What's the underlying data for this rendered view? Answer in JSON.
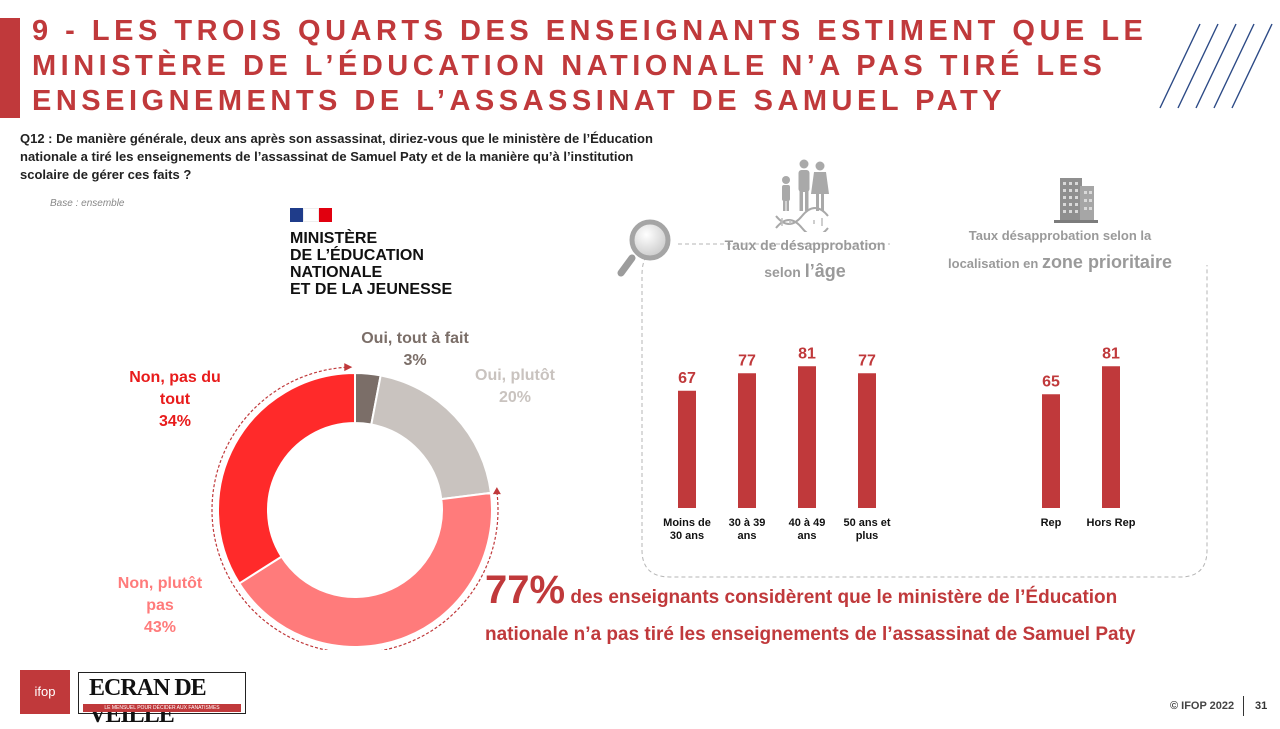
{
  "title": "9 - Les trois quarts des enseignants estiment que le ministère de l’Éducation nationale n’a pas tiré les enseignements de l’assassinat de Samuel Paty",
  "question": "Q12 : De manière générale, deux ans après son assassinat, diriez-vous que le ministère de l’Éducation nationale a tiré les enseignements de l’assassinat de Samuel Paty et de la manière qu’à l’institution scolaire de gérer ces faits ?",
  "base": "Base : ensemble",
  "ministry_logo_text": "MINISTÈRE\nDE L’ÉDUCATION\nNATIONALE\nET DE LA JEUNESSE",
  "age_panel": {
    "title_small": "Taux de désapprobation",
    "title_pre": "selon ",
    "title_big": "l’âge"
  },
  "zone_panel": {
    "title_small": "Taux désapprobation selon la",
    "title_pre": "localisation en ",
    "title_big": "zone prioritaire"
  },
  "highlight": {
    "pct": "77%",
    "text_1": " des enseignants considèrent que le ministère de l’Éducation",
    "text_2": "nationale n’a pas tiré les enseignements de l’assassinat de Samuel Paty"
  },
  "footer": {
    "ifop_logo": "ifop",
    "ecran_logo": "ECRAN DE VEILLE",
    "ecran_tagline": "LE MENSUEL POUR DÉCIDER AUX FANATISMES",
    "copyright": "© IFOP 2022",
    "page": "31"
  },
  "colors": {
    "accent": "#c0393b",
    "bar": "#c0393b",
    "oui_tout": "#7b6e68",
    "oui_plutot": "#c9c3bf",
    "non_plutot": "#ff7b7b",
    "non_tout": "#ff2a2a"
  },
  "chart_data": [
    {
      "type": "pie",
      "categories": [
        "Oui, tout à fait",
        "Oui, plutôt",
        "Non, plutôt pas",
        "Non, pas du tout"
      ],
      "values": [
        3,
        20,
        43,
        34
      ],
      "labels": [
        {
          "lines": [
            "Oui, tout à fait"
          ],
          "pct": "3%"
        },
        {
          "lines": [
            "Oui, plutôt"
          ],
          "pct": "20%"
        },
        {
          "lines": [
            "Non, plutôt",
            "pas"
          ],
          "pct": "43%"
        },
        {
          "lines": [
            "Non, pas du",
            "tout"
          ],
          "pct": "34%"
        }
      ]
    },
    {
      "type": "bar",
      "categories": [
        "Moins de 30 ans",
        "30 à 39 ans",
        "40 à 49 ans",
        "50 ans et plus"
      ],
      "category_lines": [
        [
          "Moins de",
          "30 ans"
        ],
        [
          "30 à 39",
          "ans"
        ],
        [
          "40 à 49",
          "ans"
        ],
        [
          "50 ans et",
          "plus"
        ]
      ],
      "values": [
        67,
        77,
        81,
        77
      ]
    },
    {
      "type": "bar",
      "categories": [
        "Rep",
        "Hors Rep"
      ],
      "category_lines": [
        [
          "Rep"
        ],
        [
          "Hors Rep"
        ]
      ],
      "values": [
        65,
        81
      ]
    }
  ]
}
